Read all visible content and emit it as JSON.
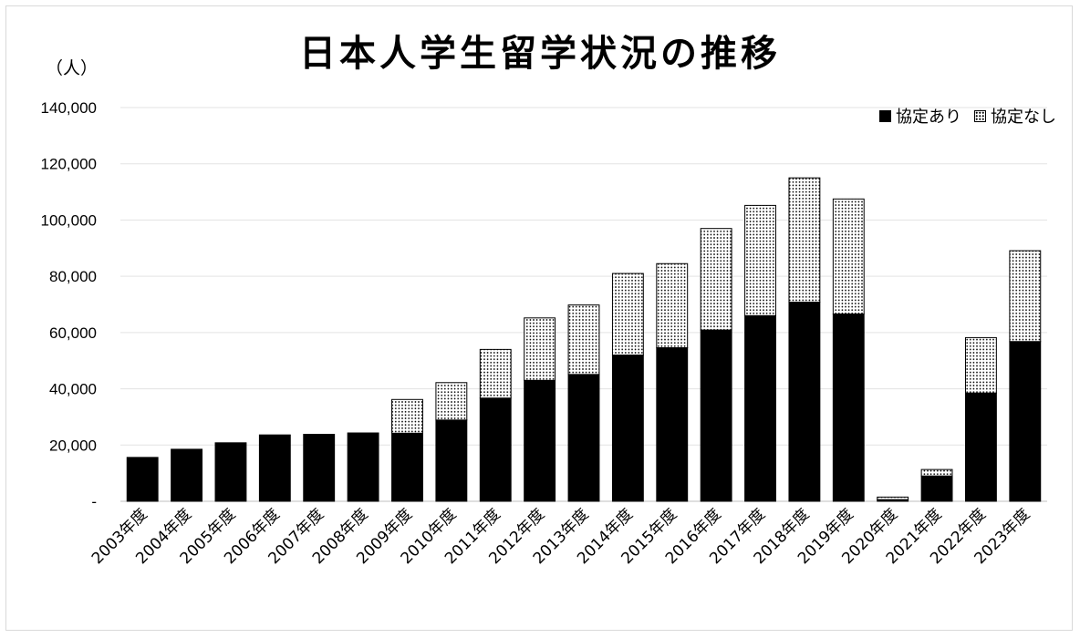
{
  "chart_data": {
    "type": "bar",
    "stacked": true,
    "title": "日本人学生留学状況の推移",
    "ylabel": "（人）",
    "ylim": [
      0,
      140000
    ],
    "yticks": [
      {
        "value": 0,
        "label": "-"
      },
      {
        "value": 20000,
        "label": "20,000"
      },
      {
        "value": 40000,
        "label": "40,000"
      },
      {
        "value": 60000,
        "label": "60,000"
      },
      {
        "value": 80000,
        "label": "80,000"
      },
      {
        "value": 100000,
        "label": "100,000"
      },
      {
        "value": 120000,
        "label": "120,000"
      },
      {
        "value": 140000,
        "label": "140,000"
      }
    ],
    "grid": true,
    "legend_position": "top-right",
    "categories": [
      "2003年度",
      "2004年度",
      "2005年度",
      "2006年度",
      "2007年度",
      "2008年度",
      "2009年度",
      "2010年度",
      "2011年度",
      "2012年度",
      "2013年度",
      "2014年度",
      "2015年度",
      "2016年度",
      "2017年度",
      "2018年度",
      "2019年度",
      "2020年度",
      "2021年度",
      "2022年度",
      "2023年度"
    ],
    "series": [
      {
        "name": "協定あり",
        "fill": "solid",
        "color": "#000000",
        "values": [
          15600,
          18500,
          20800,
          23600,
          23800,
          24300,
          24200,
          28900,
          36700,
          43000,
          45100,
          52000,
          54600,
          60900,
          66000,
          70800,
          66600,
          600,
          9000,
          38500,
          56800
        ]
      },
      {
        "name": "協定なし",
        "fill": "dotted",
        "color": "#000000",
        "values": [
          0,
          0,
          0,
          0,
          0,
          0,
          12000,
          13300,
          17300,
          22200,
          24700,
          29000,
          29900,
          36100,
          39200,
          44200,
          40900,
          900,
          2300,
          19700,
          32300
        ]
      }
    ]
  }
}
